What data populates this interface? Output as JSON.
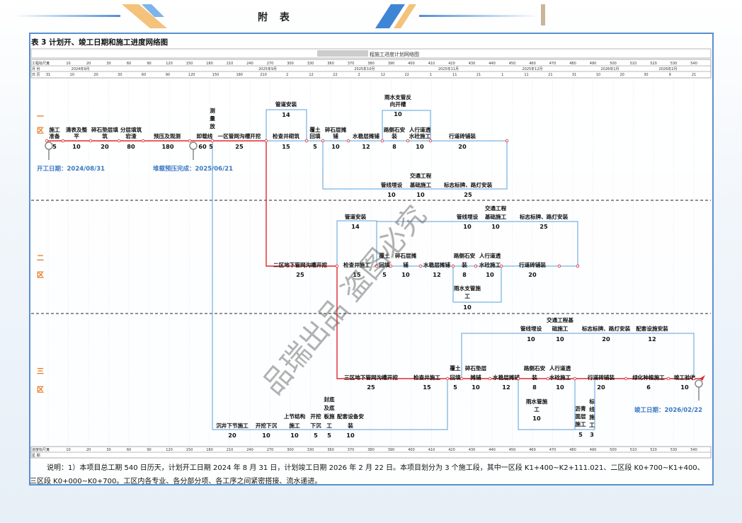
{
  "header": {
    "title": "附 表"
  },
  "table_title": "表 3 计划开、竣工日期和施工进度网络图",
  "chart_title": "程施工进度计划网络图",
  "scale": {
    "row1_label": "工程标尺天",
    "row2_label": "月 份",
    "row3_label": "日 历",
    "day_ticks": [
      "0",
      "10",
      "20",
      "30",
      "60",
      "90",
      "120",
      "150",
      "180",
      "210",
      "240",
      "270",
      "300",
      "330",
      "360",
      "370",
      "380",
      "390",
      "400",
      "410",
      "420",
      "430",
      "440",
      "450",
      "460",
      "470",
      "480",
      "490",
      "500",
      "510",
      "520",
      "530",
      "540"
    ],
    "months": [
      "2024年9月",
      "2025年9月",
      "2025年10月",
      "2025年11月",
      "2025年12月",
      "2026年1月",
      "2026年2月"
    ],
    "dates": [
      "31",
      "10",
      "20",
      "30",
      "60",
      "90",
      "120",
      "150",
      "180",
      "210",
      "2",
      "12",
      "22",
      "2",
      "12",
      "22",
      "1",
      "11",
      "21",
      "1",
      "11",
      "21",
      "31",
      "10",
      "20",
      "30",
      "9",
      "21"
    ],
    "bottom_label1": "进度标尺天",
    "bottom_label2": "星 期"
  },
  "zones": {
    "z1": "一区",
    "z2": "二区",
    "z3": "三区"
  },
  "milestones": {
    "start": "开工日期：2024/08/31",
    "preload": "堆载预压完成：2025/06/21",
    "finish": "竣工日期：2026/02/22"
  },
  "zone1": {
    "tasks": [
      {
        "name": "施工准备",
        "dur": "5"
      },
      {
        "name": "清表及整平",
        "dur": "10"
      },
      {
        "name": "碎石垫层填筑",
        "dur": "20"
      },
      {
        "name": "分层填筑宕渣",
        "dur": "80"
      },
      {
        "name": "预压及观测",
        "dur": "180"
      },
      {
        "name": "卸载线",
        "dur": "60"
      },
      {
        "name": "测量放",
        "dur": "5"
      },
      {
        "name": "一区管网沟槽开挖",
        "dur": "25"
      },
      {
        "name": "管道安装",
        "dur": "14"
      },
      {
        "name": "检查井砌筑",
        "dur": "15"
      },
      {
        "name": "覆土回填",
        "dur": "5"
      },
      {
        "name": "碎石层摊铺",
        "dur": "10"
      },
      {
        "name": "水稳层摊铺",
        "dur": "12"
      },
      {
        "name": "雨水支管反向开槽",
        "dur": "10"
      },
      {
        "name": "路侧石安装",
        "dur": "8"
      },
      {
        "name": "人行道透水砼施工",
        "dur": "10"
      },
      {
        "name": "行道砖铺装",
        "dur": "20"
      },
      {
        "name": "管线埋设",
        "dur": "10"
      },
      {
        "name": "交通工程基础施工",
        "dur": "10"
      },
      {
        "name": "标志标牌、路灯安装",
        "dur": "25"
      }
    ]
  },
  "zone2": {
    "tasks": [
      {
        "name": "二区地下管网沟槽开挖",
        "dur": "25"
      },
      {
        "name": "管道安装",
        "dur": "14"
      },
      {
        "name": "检查井施工",
        "dur": "15"
      },
      {
        "name": "覆土回填",
        "dur": "5"
      },
      {
        "name": "碎石层摊铺",
        "dur": "10"
      },
      {
        "name": "水稳层摊铺",
        "dur": "12"
      },
      {
        "name": "路侧石安装",
        "dur": "8"
      },
      {
        "name": "人行道透水砼施工",
        "dur": "10"
      },
      {
        "name": "行道砖铺装",
        "dur": "20"
      },
      {
        "name": "雨水支管施工",
        "dur": "10"
      },
      {
        "name": "管线埋设",
        "dur": "10"
      },
      {
        "name": "交通工程基础施工",
        "dur": "10"
      },
      {
        "name": "标志标牌、路灯安装",
        "dur": "25"
      }
    ]
  },
  "zone3": {
    "tasks": [
      {
        "name": "三区地下管网沟槽开挖",
        "dur": "25"
      },
      {
        "name": "检查井施工",
        "dur": "15"
      },
      {
        "name": "覆土回填",
        "dur": "5"
      },
      {
        "name": "碎石垫层摊铺",
        "dur": "10"
      },
      {
        "name": "水稳层摊铺",
        "dur": "12"
      },
      {
        "name": "路侧石安装",
        "dur": "8"
      },
      {
        "name": "人行道透水砼施工",
        "dur": "10"
      },
      {
        "name": "行道砖铺装",
        "dur": "20"
      },
      {
        "name": "绿化种植施工",
        "dur": "6"
      },
      {
        "name": "竣工验收",
        "dur": "10"
      },
      {
        "name": "管线埋设",
        "dur": "10"
      },
      {
        "name": "交通工程基础施工",
        "dur": "10"
      },
      {
        "name": "标志标牌、路灯安装",
        "dur": "20"
      },
      {
        "name": "配套设施安装",
        "dur": "12"
      },
      {
        "name": "雨水管施工",
        "dur": "10"
      },
      {
        "name": "沥青面层施工",
        "dur": "5"
      },
      {
        "name": "标线施工",
        "dur": "3"
      },
      {
        "name": "沉井下节施工",
        "dur": "20"
      },
      {
        "name": "开挖下沉",
        "dur": "10"
      },
      {
        "name": "上节结构施工",
        "dur": "10"
      },
      {
        "name": "开挖下沉",
        "dur": "5"
      },
      {
        "name": "封底及底板施工",
        "dur": "5"
      },
      {
        "name": "配套设备安装",
        "dur": "10"
      }
    ]
  },
  "note": {
    "label": "说明：",
    "text": "1）本项目总工期 540 日历天，计划开工日期 2024 年 8 月 31 日，计划竣工日期 2026 年 2 月 22 日。本项目划分为 3 个施工段，其中一区段 K1+400~K2+111.021、二区段 K0+700~K1+400、三区段 K0+000~K0+700。工区内各专业、各分部分项、各工序之间紧密搭接、流水递进。"
  },
  "watermark": "品瑞出品 盗图必究",
  "colors": {
    "critical": "#e0282e",
    "normal": "#5aa0d8",
    "zone_label": "#e8741e",
    "milestone": "#3a78c2"
  }
}
